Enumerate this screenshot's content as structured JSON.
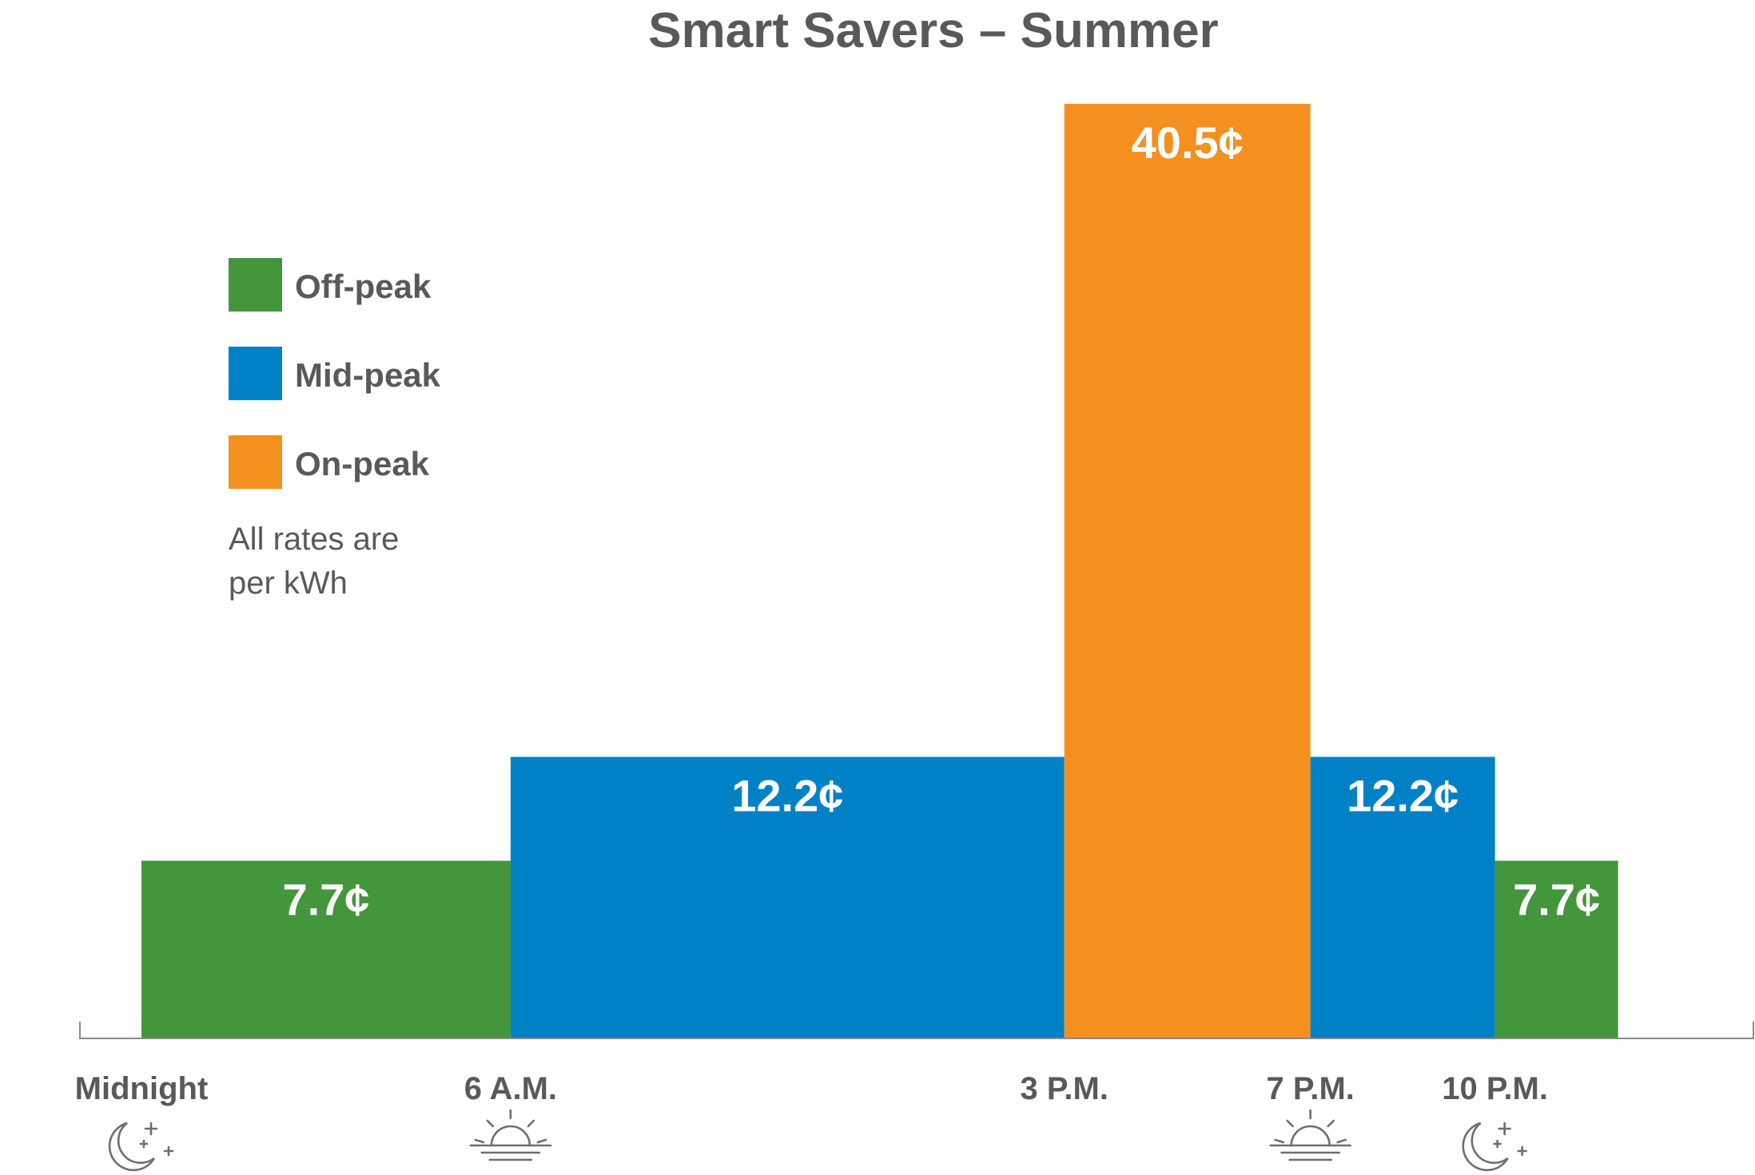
{
  "chart_data": {
    "type": "bar",
    "title": "Smart Savers – Summer",
    "xlabel": "",
    "ylabel": "",
    "ylim": [
      0,
      45
    ],
    "unit": "¢",
    "note_lines": [
      "All rates are",
      "per kWh"
    ],
    "legend": [
      {
        "key": "off",
        "label": "Off-peak",
        "color": "#43963b"
      },
      {
        "key": "mid",
        "label": "Mid-peak",
        "color": "#0081c6"
      },
      {
        "key": "on",
        "label": "On-peak",
        "color": "#f39020"
      }
    ],
    "x_range_hours": [
      -1.0,
      26.2
    ],
    "segments": [
      {
        "start": 0,
        "end": 6,
        "value": 7.7,
        "label": "7.7¢",
        "tier": "off"
      },
      {
        "start": 6,
        "end": 15,
        "value": 12.2,
        "label": "12.2¢",
        "tier": "mid"
      },
      {
        "start": 15,
        "end": 19,
        "value": 40.5,
        "label": "40.5¢",
        "tier": "on"
      },
      {
        "start": 19,
        "end": 22,
        "value": 12.2,
        "label": "12.2¢",
        "tier": "mid"
      },
      {
        "start": 22,
        "end": 24,
        "value": 7.7,
        "label": "7.7¢",
        "tier": "off"
      }
    ],
    "ticks": [
      {
        "hour": 0,
        "label": "Midnight",
        "icon": "moon-stars-icon"
      },
      {
        "hour": 6,
        "label": "6 A.M.",
        "icon": "sunrise-icon"
      },
      {
        "hour": 15,
        "label": "3 P.M.",
        "icon": ""
      },
      {
        "hour": 19,
        "label": "7 P.M.",
        "icon": "sunset-icon"
      },
      {
        "hour": 22,
        "label": "10 P.M.",
        "icon": "moon-stars-icon"
      }
    ]
  }
}
